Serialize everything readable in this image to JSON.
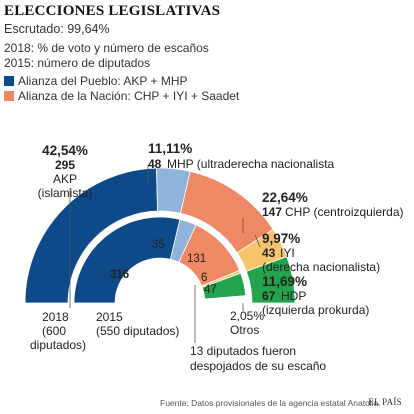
{
  "title": "ELECCIONES LEGISLATIVAS",
  "subtitle": "Escrutado: 99,64%",
  "notes": {
    "outer": "2018: % de voto y número de escaños",
    "inner": "2015: número de diputados"
  },
  "legend": [
    {
      "label": "Alianza del Pueblo: AKP + MHP",
      "color": "#0e4a8a"
    },
    {
      "label": "Alianza de la Nación: CHP + IYI + Saadet",
      "color": "#ef8864"
    }
  ],
  "chart_data": {
    "type": "semicircle-parliament",
    "series": [
      {
        "name": "2018",
        "parties": [
          {
            "party": "AKP",
            "vote_pct": "42,54%",
            "seats": 295,
            "desc": "(islamista)",
            "color": "#0e4a8a"
          },
          {
            "party": "MHP",
            "vote_pct": "11,11%",
            "seats": 48,
            "desc": "(ultraderecha nacionalista",
            "color": "#8fb3d9"
          },
          {
            "party": "CHP",
            "vote_pct": "22,64%",
            "seats": 147,
            "desc": "(centroizquierda)",
            "color": "#ef8864"
          },
          {
            "party": "IYI",
            "vote_pct": "9,97%",
            "seats": 43,
            "desc": "(derecha nacionalista)",
            "color": "#f7c46c"
          },
          {
            "party": "HDP",
            "vote_pct": "11,69%",
            "seats": 67,
            "desc": "(izquierda prokurda)",
            "color": "#23a34d"
          },
          {
            "party": "Otros",
            "vote_pct": "2,05%",
            "seats": 0,
            "desc": "",
            "color": "#bfbfbf"
          }
        ],
        "label": "2018",
        "label2": "(600",
        "label3": "diputados)"
      },
      {
        "name": "2015",
        "parties": [
          {
            "party": "AKP",
            "seats": 316,
            "color": "#0e4a8a"
          },
          {
            "party": "MHP",
            "seats": 35,
            "color": "#8fb3d9"
          },
          {
            "party": "CHP",
            "seats": 131,
            "color": "#ef8864"
          },
          {
            "party": "IYI",
            "seats": 6,
            "color": "#f7c46c"
          },
          {
            "party": "HDP",
            "seats": 47,
            "color": "#23a34d"
          },
          {
            "party": "vacant",
            "seats": 15,
            "color": "#ffffff"
          }
        ],
        "label": "2015",
        "label2": "(550 diputados)"
      }
    ],
    "annotation": [
      "13 diputados fueron",
      "despojados de su escaño"
    ]
  },
  "footer": "Fuente: Datos provisionales de la agencia estatal Anatolia.",
  "brand": "EL PAÍS"
}
